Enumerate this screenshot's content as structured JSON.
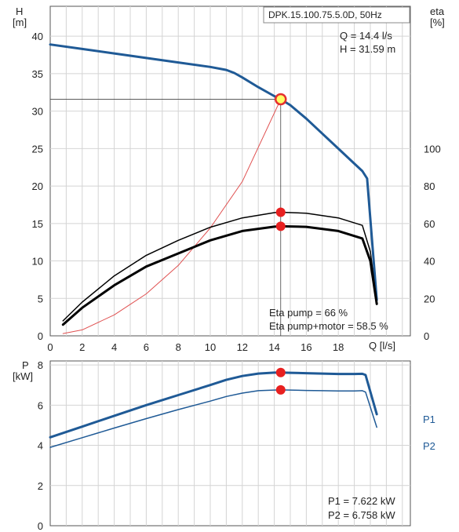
{
  "chart_data": [
    {
      "type": "line",
      "title": "DPK.15.100.75.5.0D, 50Hz",
      "xlabel": "Q [l/s]",
      "ylabel": [
        "H",
        "[m]"
      ],
      "y2label": [
        "eta",
        "[%]"
      ],
      "xlim": [
        0,
        22.5
      ],
      "ylim": [
        0,
        44
      ],
      "y2lim": [
        0,
        176
      ],
      "xticks": [
        "0",
        "2",
        "4",
        "6",
        "8",
        "10",
        "12",
        "14",
        "16",
        "18"
      ],
      "yticks": [
        "0",
        "5",
        "10",
        "15",
        "20",
        "25",
        "30",
        "35",
        "40"
      ],
      "y2ticks": [
        "0",
        "20",
        "40",
        "60",
        "80",
        "100"
      ],
      "grid": true,
      "readout": [
        "Q = 14.4 l/s",
        "H = 31.59 m"
      ],
      "efficiency_labels": [
        "Eta pump = 66 %",
        "Eta pump+motor = 58.5 %"
      ],
      "series": [
        {
          "key": "head",
          "axis": "left",
          "color": "#1f5a96",
          "x": [
            0,
            2,
            4,
            6,
            8,
            10,
            11,
            11.5,
            12,
            13,
            14,
            14.4,
            15,
            16,
            17,
            18,
            19,
            19.5,
            19.8,
            20.4
          ],
          "y": [
            38.9,
            38.3,
            37.7,
            37.1,
            36.5,
            35.9,
            35.5,
            35.1,
            34.5,
            33.2,
            32.0,
            31.59,
            30.8,
            29.0,
            27.0,
            25.0,
            23.0,
            22.0,
            21.0,
            4.8
          ]
        },
        {
          "key": "system",
          "axis": "left",
          "color": "#e05050",
          "x": [
            0.8,
            2,
            4,
            6,
            8,
            10,
            12,
            14.4
          ],
          "y": [
            0.3,
            0.8,
            2.8,
            5.6,
            9.4,
            14.4,
            20.6,
            31.59
          ]
        },
        {
          "key": "eta-pump",
          "axis": "right",
          "color": "#000000",
          "x": [
            0.8,
            2,
            4,
            6,
            8,
            10,
            12,
            14,
            14.4,
            16,
            18,
            19.5,
            20,
            20.4
          ],
          "y": [
            8,
            18,
            32,
            43,
            51,
            58,
            63,
            65.8,
            66,
            65.5,
            63,
            59,
            45,
            18
          ]
        },
        {
          "key": "eta-pump-motor",
          "axis": "right",
          "color": "#000000",
          "x": [
            0.8,
            2,
            4,
            6,
            8,
            10,
            12,
            14,
            14.4,
            16,
            18,
            19.5,
            20,
            20.4
          ],
          "y": [
            6,
            15,
            27,
            37,
            44,
            51,
            56,
            58.3,
            58.5,
            58.2,
            56,
            52,
            40,
            17
          ]
        }
      ],
      "markers": [
        {
          "x": 14.4,
          "y": 31.59,
          "axis": "left",
          "style": "operating-point"
        },
        {
          "x": 14.4,
          "y": 66,
          "axis": "right",
          "style": "point"
        },
        {
          "x": 14.4,
          "y": 58.5,
          "axis": "right",
          "style": "point"
        }
      ]
    },
    {
      "type": "line",
      "xlabel": "",
      "ylabel": [
        "P",
        "[kW]"
      ],
      "xlim": [
        0,
        22.5
      ],
      "ylim": [
        0,
        8.2
      ],
      "yticks": [
        "0",
        "2",
        "4",
        "6",
        "8"
      ],
      "grid": true,
      "readout": [
        "P1 = 7.622 kW",
        "P2 = 6.758 kW"
      ],
      "series": [
        {
          "name": "P1",
          "color": "#1f5a96",
          "x": [
            0,
            2,
            4,
            6,
            8,
            10,
            11,
            12,
            13,
            14,
            14.4,
            15,
            16,
            17,
            18,
            19,
            19.5,
            19.7,
            20.4
          ],
          "y": [
            4.4,
            4.93,
            5.47,
            6.0,
            6.5,
            7.0,
            7.26,
            7.45,
            7.57,
            7.62,
            7.622,
            7.61,
            7.59,
            7.57,
            7.55,
            7.55,
            7.56,
            7.5,
            5.55
          ]
        },
        {
          "name": "P2",
          "color": "#1f5a96",
          "x": [
            0,
            2,
            4,
            6,
            8,
            10,
            11,
            12,
            13,
            14,
            14.4,
            15,
            16,
            17,
            18,
            19,
            19.5,
            19.7,
            20.4
          ],
          "y": [
            3.9,
            4.38,
            4.86,
            5.33,
            5.78,
            6.2,
            6.43,
            6.6,
            6.72,
            6.75,
            6.758,
            6.75,
            6.73,
            6.72,
            6.71,
            6.71,
            6.72,
            6.65,
            4.9
          ]
        }
      ],
      "markers": [
        {
          "x": 14.4,
          "y": 7.622,
          "style": "point"
        },
        {
          "x": 14.4,
          "y": 6.758,
          "style": "point"
        }
      ]
    }
  ]
}
